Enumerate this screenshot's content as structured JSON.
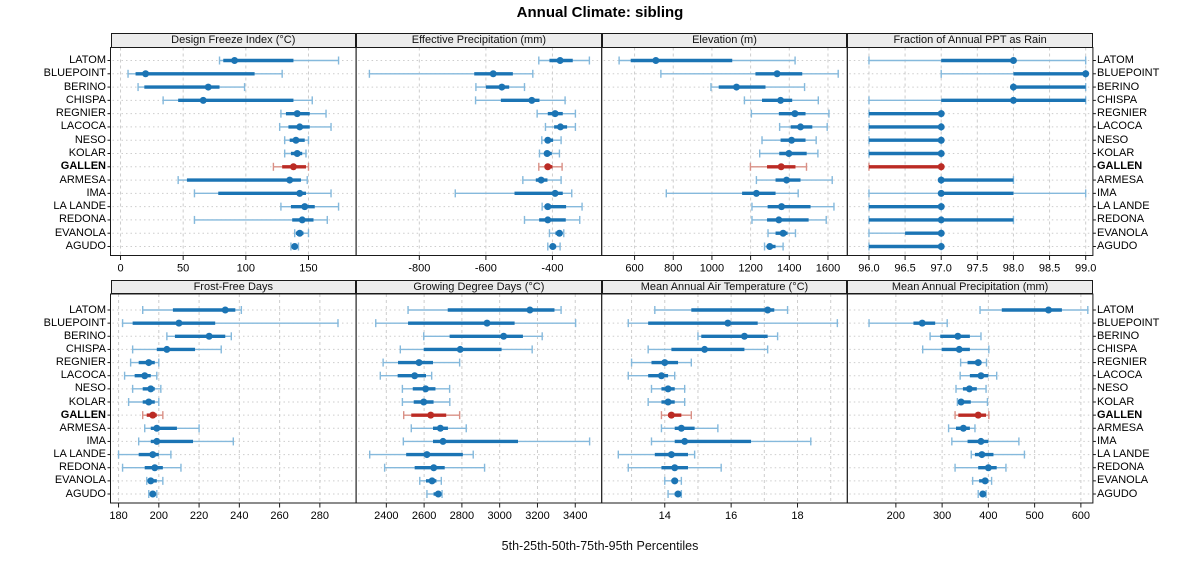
{
  "title": "Annual Climate: sibling",
  "caption": "5th-25th-50th-75th-95th Percentiles",
  "highlight_site": "GALLEN",
  "colors": {
    "series": "#1b74b4",
    "series_light": "#85b9dc",
    "highlight": "#bb2b24",
    "highlight_light": "#d99086",
    "grid": "#cdcdcd",
    "strip_bg": "#ececec",
    "frame": "#1a1a1a"
  },
  "chart_data": {
    "type": "scatter",
    "variant": "five-number-summary-dotplot",
    "percentiles": [
      5,
      25,
      50,
      75,
      95
    ],
    "legend_note": "thin line = 5th-95th, thick line = 25th-75th, dot = median",
    "grid": "dashed",
    "sites": [
      "LATOM",
      "BLUEPOINT",
      "BERINO",
      "CHISPA",
      "REGNIER",
      "LACOCA",
      "NESO",
      "KOLAR",
      "GALLEN",
      "ARMESA",
      "IMA",
      "LA LANDE",
      "REDONA",
      "EVANOLA",
      "AGUDO"
    ],
    "panels": [
      {
        "id": "design-freeze-index",
        "title": "Design Freeze Index (°C)",
        "row": 0,
        "col": 0,
        "xlim": [
          -8,
          188
        ],
        "ticks": [
          0,
          50,
          100,
          150
        ],
        "tick_labels": [
          "0",
          "50",
          "100",
          "150"
        ],
        "values": [
          [
            79,
            82,
            91,
            138,
            174
          ],
          [
            6,
            12,
            20,
            107,
            129
          ],
          [
            14,
            19,
            70,
            79,
            99
          ],
          [
            34,
            46,
            66,
            138,
            153
          ],
          [
            128,
            132,
            141,
            151,
            164
          ],
          [
            127,
            134,
            143,
            151,
            168
          ],
          [
            131,
            135,
            140,
            147,
            150
          ],
          [
            131,
            136,
            141,
            145,
            148
          ],
          [
            122,
            129,
            138,
            148,
            150
          ],
          [
            46,
            53,
            135,
            144,
            149
          ],
          [
            59,
            78,
            143,
            148,
            168
          ],
          [
            128,
            136,
            147,
            155,
            174
          ],
          [
            59,
            137,
            145,
            154,
            165
          ],
          [
            139,
            140,
            143,
            146,
            150
          ],
          [
            136,
            137,
            139,
            141,
            142
          ]
        ]
      },
      {
        "id": "effective-precipitation",
        "title": "Effective Precipitation (mm)",
        "row": 0,
        "col": 1,
        "xlim": [
          -990,
          -252
        ],
        "ticks": [
          -800,
          -600,
          -400
        ],
        "tick_labels": [
          "-800",
          "-600",
          "-400"
        ],
        "values": [
          [
            -441,
            -409,
            -377,
            -339,
            -289
          ],
          [
            -950,
            -635,
            -578,
            -519,
            -459
          ],
          [
            -630,
            -600,
            -552,
            -530,
            -484
          ],
          [
            -631,
            -555,
            -462,
            -439,
            -362
          ],
          [
            -446,
            -414,
            -392,
            -369,
            -331
          ],
          [
            -421,
            -395,
            -376,
            -356,
            -331
          ],
          [
            -432,
            -422,
            -414,
            -398,
            -374
          ],
          [
            -439,
            -424,
            -416,
            -402,
            -379
          ],
          [
            -441,
            -424,
            -414,
            -400,
            -371
          ],
          [
            -489,
            -450,
            -434,
            -415,
            -374
          ],
          [
            -692,
            -514,
            -392,
            -369,
            -342
          ],
          [
            -431,
            -424,
            -414,
            -359,
            -311
          ],
          [
            -484,
            -440,
            -414,
            -360,
            -318
          ],
          [
            -409,
            -391,
            -379,
            -371,
            -366
          ],
          [
            -414,
            -406,
            -399,
            -389,
            -377
          ]
        ]
      },
      {
        "id": "elevation",
        "title": "Elevation (m)",
        "row": 0,
        "col": 2,
        "xlim": [
          430,
          1700
        ],
        "ticks": [
          600,
          800,
          1000,
          1200,
          1400,
          1600
        ],
        "tick_labels": [
          "600",
          "800",
          "1000",
          "1200",
          "1400",
          "1600"
        ],
        "values": [
          [
            520,
            580,
            710,
            1105,
            1430
          ],
          [
            736,
            1225,
            1337,
            1467,
            1653
          ],
          [
            995,
            1035,
            1127,
            1277,
            1479
          ],
          [
            1168,
            1259,
            1355,
            1415,
            1550
          ],
          [
            1204,
            1346,
            1429,
            1484,
            1605
          ],
          [
            1350,
            1407,
            1458,
            1519,
            1596
          ],
          [
            1259,
            1355,
            1412,
            1484,
            1539
          ],
          [
            1247,
            1348,
            1398,
            1490,
            1548
          ],
          [
            1199,
            1285,
            1358,
            1432,
            1489
          ],
          [
            1230,
            1329,
            1386,
            1458,
            1622
          ],
          [
            764,
            1156,
            1230,
            1329,
            1446
          ],
          [
            1207,
            1288,
            1360,
            1510,
            1631
          ],
          [
            1207,
            1285,
            1346,
            1500,
            1591
          ],
          [
            1290,
            1329,
            1368,
            1391,
            1432
          ],
          [
            1272,
            1285,
            1299,
            1329,
            1368
          ]
        ]
      },
      {
        "id": "fraction-ppt-rain",
        "title": "Fraction of Annual PPT as Rain",
        "row": 0,
        "col": 3,
        "xlim": [
          95.7,
          99.1
        ],
        "ticks": [
          96,
          96.5,
          97,
          97.5,
          98,
          98.5,
          99
        ],
        "tick_labels": [
          "96.0",
          "96.5",
          "97.0",
          "97.5",
          "98.0",
          "98.5",
          "99.0"
        ],
        "values": [
          [
            96,
            97,
            98,
            98,
            99
          ],
          [
            97,
            98,
            99,
            99,
            99
          ],
          [
            98,
            98,
            98,
            99,
            99
          ],
          [
            96,
            97,
            98,
            99,
            99
          ],
          [
            96,
            96,
            97,
            97,
            97
          ],
          [
            96,
            96,
            97,
            97,
            97
          ],
          [
            96,
            96,
            97,
            97,
            97
          ],
          [
            96,
            96,
            97,
            97,
            97
          ],
          [
            96,
            96,
            97,
            97,
            97
          ],
          [
            97,
            97,
            97,
            98,
            98
          ],
          [
            96,
            97,
            97,
            98,
            99
          ],
          [
            96,
            96,
            97,
            97,
            97
          ],
          [
            96,
            96,
            97,
            98,
            98
          ],
          [
            96,
            96.5,
            97,
            97,
            97
          ],
          [
            96,
            96,
            97,
            97,
            97
          ]
        ]
      },
      {
        "id": "frost-free-days",
        "title": "Frost-Free Days",
        "row": 1,
        "col": 0,
        "xlim": [
          176,
          298
        ],
        "ticks": [
          180,
          200,
          220,
          240,
          260,
          280
        ],
        "tick_labels": [
          "180",
          "200",
          "220",
          "240",
          "260",
          "280"
        ],
        "values": [
          [
            192,
            207,
            233,
            238,
            241
          ],
          [
            182,
            187,
            210,
            228,
            289
          ],
          [
            204,
            208,
            225,
            233,
            236
          ],
          [
            187,
            199,
            204,
            218,
            231
          ],
          [
            186,
            190,
            195,
            198,
            200
          ],
          [
            183,
            188,
            193,
            196,
            199
          ],
          [
            187,
            192,
            196,
            198,
            201
          ],
          [
            185,
            192,
            195,
            198,
            200
          ],
          [
            192,
            194,
            197,
            199,
            202
          ],
          [
            193,
            196,
            199,
            209,
            220
          ],
          [
            190,
            196,
            199,
            217,
            237
          ],
          [
            180,
            190,
            197,
            200,
            206
          ],
          [
            182,
            193,
            198,
            202,
            211
          ],
          [
            194,
            195,
            196,
            199,
            202
          ],
          [
            195,
            196,
            197,
            198,
            199
          ]
        ]
      },
      {
        "id": "growing-degree-days",
        "title": "Growing Degree Days (°C)",
        "row": 1,
        "col": 1,
        "xlim": [
          2240,
          3540
        ],
        "ticks": [
          2400,
          2600,
          2800,
          3000,
          3200,
          3400
        ],
        "tick_labels": [
          "2400",
          "2600",
          "2800",
          "3000",
          "3200",
          "3400"
        ],
        "values": [
          [
            2515,
            2725,
            3160,
            3290,
            3325
          ],
          [
            2344,
            2515,
            2933,
            3079,
            3402
          ],
          [
            2598,
            2735,
            3021,
            3123,
            3225
          ],
          [
            2474,
            2598,
            2791,
            3010,
            3172
          ],
          [
            2383,
            2462,
            2573,
            2647,
            2788
          ],
          [
            2368,
            2460,
            2550,
            2610,
            2640
          ],
          [
            2485,
            2540,
            2608,
            2660,
            2735
          ],
          [
            2485,
            2545,
            2598,
            2650,
            2736
          ],
          [
            2492,
            2532,
            2635,
            2717,
            2788
          ],
          [
            2532,
            2647,
            2686,
            2726,
            2823
          ],
          [
            2490,
            2647,
            2700,
            3097,
            3476
          ],
          [
            2312,
            2505,
            2615,
            2805,
            2860
          ],
          [
            2391,
            2550,
            2651,
            2709,
            2920
          ],
          [
            2577,
            2610,
            2642,
            2665,
            2691
          ],
          [
            2615,
            2650,
            2675,
            2685,
            2695
          ]
        ]
      },
      {
        "id": "mean-annual-air-temperature",
        "title": "Mean Annual Air Temperature (°C)",
        "row": 1,
        "col": 2,
        "xlim": [
          12.1,
          19.5
        ],
        "ticks": [
          14,
          16,
          18
        ],
        "tick_labels": [
          "14",
          "16",
          "18"
        ],
        "grid_ticks": [
          13,
          14,
          15,
          16,
          17,
          18,
          19
        ],
        "values": [
          [
            13.7,
            14.8,
            17.1,
            17.3,
            17.7
          ],
          [
            12.9,
            13.5,
            15.9,
            16.8,
            19.2
          ],
          [
            15.0,
            15.1,
            16.4,
            17.1,
            17.4
          ],
          [
            13.5,
            14.2,
            15.2,
            16.4,
            17.1
          ],
          [
            13.0,
            13.6,
            14.0,
            14.4,
            14.8
          ],
          [
            12.9,
            13.5,
            13.9,
            14.1,
            14.3
          ],
          [
            13.6,
            13.9,
            14.1,
            14.3,
            14.6
          ],
          [
            13.5,
            13.9,
            14.1,
            14.3,
            14.6
          ],
          [
            13.9,
            14.1,
            14.2,
            14.5,
            14.8
          ],
          [
            13.9,
            14.3,
            14.5,
            14.9,
            15.6
          ],
          [
            13.6,
            14.3,
            14.6,
            16.6,
            18.4
          ],
          [
            12.6,
            13.7,
            14.2,
            14.7,
            14.9
          ],
          [
            12.9,
            13.9,
            14.3,
            14.7,
            15.7
          ],
          [
            14.0,
            14.2,
            14.3,
            14.4,
            14.5
          ],
          [
            14.1,
            14.3,
            14.4,
            14.45,
            14.5
          ]
        ]
      },
      {
        "id": "mean-annual-precipitation",
        "title": "Mean Annual Precipitation (mm)",
        "row": 1,
        "col": 3,
        "xlim": [
          95,
          626
        ],
        "ticks": [
          200,
          300,
          400,
          500,
          600
        ],
        "tick_labels": [
          "200",
          "300",
          "400",
          "500",
          "600"
        ],
        "values": [
          [
            382,
            429,
            530,
            559,
            615
          ],
          [
            142,
            238,
            257,
            285,
            311
          ],
          [
            274,
            296,
            334,
            360,
            384
          ],
          [
            258,
            299,
            337,
            360,
            401
          ],
          [
            340,
            355,
            378,
            385,
            396
          ],
          [
            339,
            360,
            384,
            400,
            418
          ],
          [
            330,
            345,
            359,
            375,
            395
          ],
          [
            333,
            336,
            341,
            362,
            398
          ],
          [
            328,
            335,
            378,
            395,
            401
          ],
          [
            314,
            330,
            346,
            360,
            371
          ],
          [
            321,
            355,
            384,
            400,
            466
          ],
          [
            363,
            371,
            386,
            411,
            478
          ],
          [
            328,
            378,
            400,
            418,
            438
          ],
          [
            366,
            380,
            393,
            400,
            407
          ],
          [
            378,
            383,
            388,
            392,
            395
          ]
        ]
      }
    ]
  }
}
